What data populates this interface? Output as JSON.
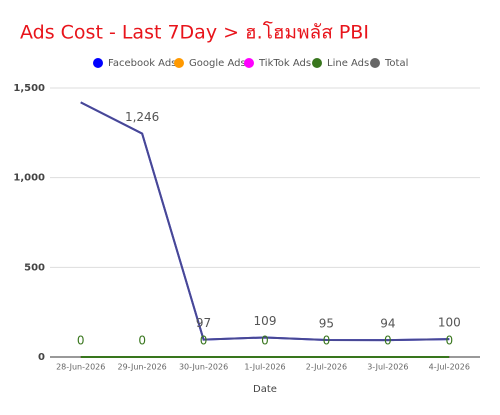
{
  "chart_data": {
    "type": "line",
    "title": "Ads Cost - Last 7Day > ฮ.โฮมพลัส PBI",
    "x_label": "Date",
    "categories": [
      "28-Jun-2026",
      "29-Jun-2026",
      "30-Jun-2026",
      "1-Jul-2026",
      "2-Jul-2026",
      "3-Jul-2026",
      "4-Jul-2026"
    ],
    "series": [
      {
        "name": "Facebook Ads",
        "color": "#0000ff",
        "values": [
          1420,
          1246,
          97,
          109,
          95,
          94,
          100
        ]
      },
      {
        "name": "Google Ads",
        "color": "#ff9900",
        "values": [
          0,
          0,
          0,
          0,
          0,
          0,
          0
        ]
      },
      {
        "name": "TikTok Ads",
        "color": "#ff00ff",
        "values": [
          0,
          0,
          0,
          0,
          0,
          0,
          0
        ]
      },
      {
        "name": "Line Ads",
        "color": "#38761d",
        "values": [
          0,
          0,
          0,
          0,
          0,
          0,
          0
        ],
        "data_labels": true
      },
      {
        "name": "Total",
        "color": "#666666",
        "values": [
          1420,
          1246,
          97,
          109,
          95,
          94,
          100
        ],
        "data_labels": true,
        "value_labels": [
          null,
          "1,246",
          "97",
          "109",
          "95",
          "94",
          "100"
        ]
      }
    ],
    "ylim": [
      0,
      1500
    ],
    "yticks": [
      0,
      500,
      {
        "value": 1000,
        "label": "1,000"
      },
      {
        "value": 1500,
        "label": "1,500"
      }
    ],
    "grid": true,
    "legend": "top"
  }
}
